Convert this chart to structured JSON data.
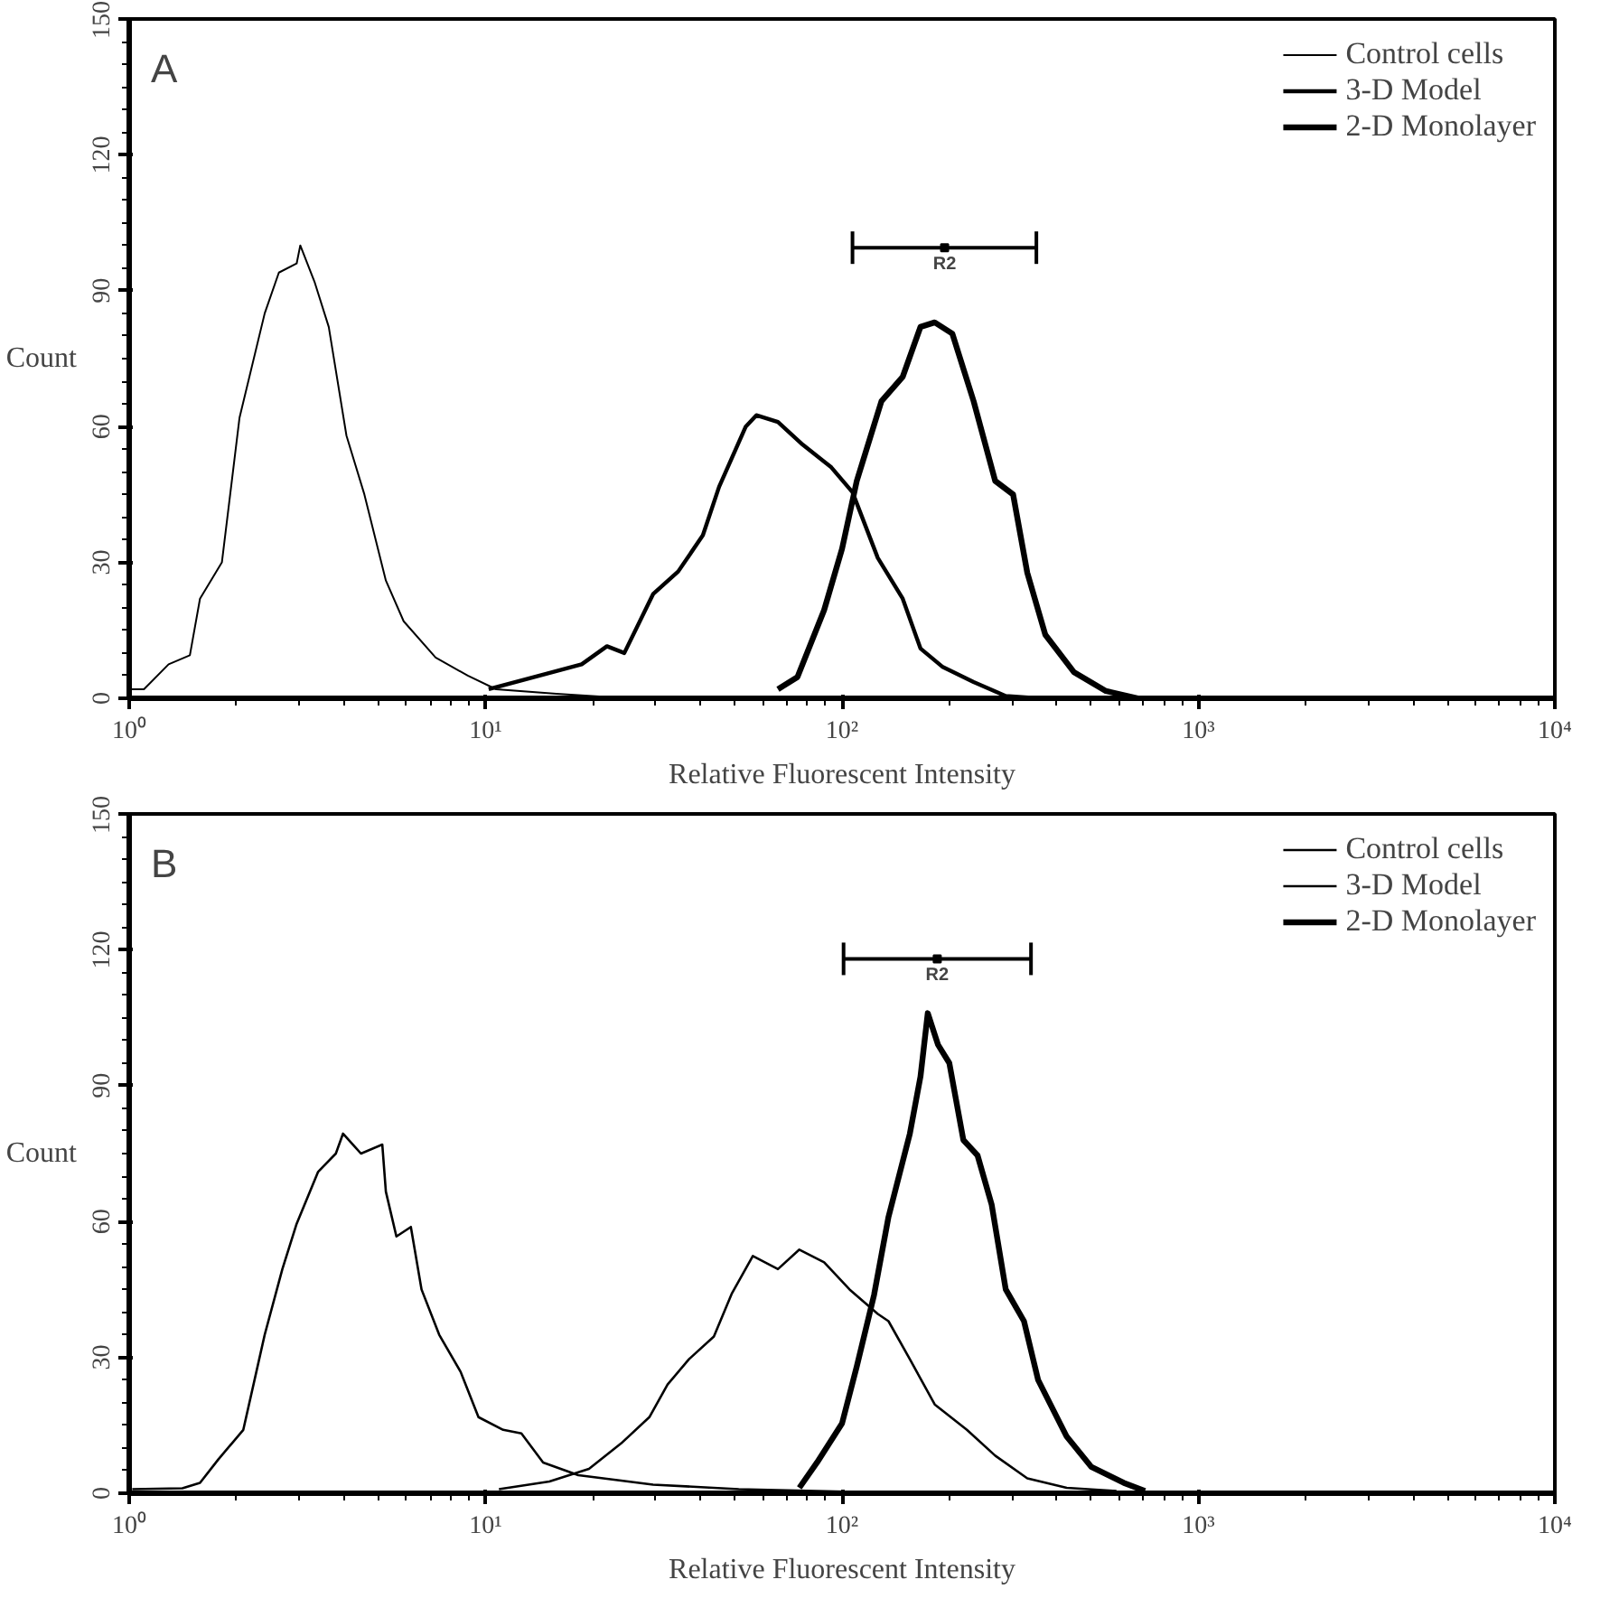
{
  "chart_data": [
    {
      "type": "line",
      "title": "A",
      "xlabel": "Relative Fluorescent Intensity",
      "ylabel": "Count",
      "log": "x",
      "legend": "top right",
      "grid": false,
      "xlim": [
        1,
        10000
      ],
      "xticks": [
        {
          "value": 1,
          "label": "10⁰"
        },
        {
          "value": 10,
          "label": "10¹"
        },
        {
          "value": 100,
          "label": "10²"
        },
        {
          "value": 1000,
          "label": "10³"
        },
        {
          "value": 10000,
          "label": "10⁴"
        }
      ],
      "ylim": [
        0,
        150
      ],
      "yticks": [
        0,
        30,
        60,
        90,
        120,
        150
      ],
      "annotations": [
        {
          "text": "R2",
          "x": 194,
          "y": 99.5
        }
      ],
      "series": [
        {
          "name": "Control cells",
          "color": "#000000",
          "x": [
            1,
            1.1,
            1.29,
            1.48,
            1.58,
            1.82,
            2.04,
            2.4,
            2.63,
            2.95,
            3.02,
            3.31,
            3.63,
            4.07,
            4.57,
            5.25,
            5.89,
            7.24,
            8.91,
            10.7,
            15.8,
            25.1
          ],
          "values": [
            2,
            2,
            7.5,
            9.5,
            22,
            30,
            62,
            85,
            94,
            96,
            100,
            92,
            82,
            58,
            45,
            26,
            17,
            9,
            5,
            2,
            1,
            0
          ]
        },
        {
          "name": "3-D Model",
          "color": "#000000",
          "x": [
            10.2,
            14.8,
            18.6,
            21.9,
            24.5,
            29.5,
            34.7,
            40.7,
            45.2,
            53.7,
            57.5,
            66.1,
            77.6,
            93.3,
            107,
            126,
            148,
            166,
            191,
            234,
            288,
            355
          ],
          "values": [
            2,
            5.4,
            7.5,
            11.5,
            10,
            23,
            28,
            36,
            46.7,
            60,
            62.5,
            61,
            56,
            51,
            45.5,
            31,
            22,
            11,
            7,
            3.6,
            0.5,
            0
          ]
        },
        {
          "name": "2-D Monolayer",
          "color": "#000000",
          "x": [
            66.1,
            75,
            89.1,
            100,
            110,
            129,
            148,
            166,
            182,
            204,
            234,
            269,
            302,
            331,
            372,
            447,
            550,
            676
          ],
          "values": [
            2,
            4.7,
            19.5,
            33,
            48,
            65.6,
            71,
            82,
            83,
            80.5,
            65.6,
            48,
            45,
            27.7,
            14,
            5.8,
            1.6,
            0
          ]
        },
        {
          "type": "scatter",
          "marker": "square",
          "color": "#000000",
          "x": [
            194
          ],
          "values": [
            99.5
          ],
          "xerrors": [
            [
              107,
              351
            ]
          ]
        }
      ]
    },
    {
      "type": "line",
      "title": "B",
      "xlabel": "Relative Fluorescent Intensity",
      "ylabel": "Count",
      "log": "x",
      "legend": "top right",
      "grid": false,
      "xlim": [
        1,
        10000
      ],
      "xticks": [
        {
          "value": 1,
          "label": "10⁰"
        },
        {
          "value": 10,
          "label": "10¹"
        },
        {
          "value": 100,
          "label": "10²"
        },
        {
          "value": 1000,
          "label": "10³"
        },
        {
          "value": 10000,
          "label": "10⁴"
        }
      ],
      "ylim": [
        0,
        150
      ],
      "yticks": [
        0,
        30,
        60,
        90,
        120,
        150
      ],
      "annotations": [
        {
          "text": "R2",
          "x": 185,
          "y": 118
        }
      ],
      "series": [
        {
          "name": "Control cells",
          "color": "#000000",
          "x": [
            1.02,
            1.41,
            1.58,
            1.78,
            2.09,
            2.4,
            2.69,
            2.95,
            3.39,
            3.8,
            3.98,
            4.47,
            5.13,
            5.25,
            5.62,
            6.17,
            6.61,
            7.41,
            8.51,
            9.55,
            11.2,
            12.6,
            14.5,
            18.2,
            24,
            29.5,
            51.3,
            158
          ],
          "values": [
            0.9,
            1.1,
            2.3,
            7.5,
            14,
            35,
            49.5,
            59.5,
            71,
            75,
            79.4,
            75,
            77,
            66.6,
            56.7,
            58.8,
            45,
            35,
            26.8,
            16.8,
            14,
            13.2,
            6.8,
            4,
            2.8,
            1.9,
            0.9,
            0
          ]
        },
        {
          "name": "3-D Model",
          "color": "#000000",
          "x": [
            10.9,
            15.1,
            19.5,
            24,
            28.8,
            32.4,
            37.2,
            43.7,
            49,
            56.2,
            66.1,
            75.9,
            89.1,
            105,
            126,
            135,
            155,
            182,
            224,
            269,
            331,
            427,
            589
          ],
          "values": [
            0.9,
            2.6,
            5.4,
            11,
            16.8,
            24,
            29.6,
            34.6,
            44,
            52.4,
            49.5,
            53.8,
            51,
            45,
            39.6,
            38,
            29.6,
            19.6,
            14,
            8.3,
            3.3,
            1.2,
            0.5
          ]
        },
        {
          "name": "2-D Monolayer",
          "color": "#000000",
          "x": [
            75.9,
            85.1,
            100,
            110,
            123,
            135,
            155,
            166,
            174,
            186,
            200,
            219,
            240,
            263,
            288,
            324,
            355,
            427,
            501,
            617,
            708
          ],
          "values": [
            1.2,
            6.8,
            15.4,
            28,
            43.8,
            61,
            79.4,
            92,
            106,
            99,
            95,
            78,
            74.6,
            63.7,
            45,
            38,
            25,
            12.5,
            5.8,
            2.3,
            0.5
          ]
        },
        {
          "type": "scatter",
          "marker": "square",
          "color": "#000000",
          "x": [
            185
          ],
          "values": [
            118
          ],
          "xerrors": [
            [
              101,
              339
            ]
          ]
        }
      ]
    }
  ]
}
